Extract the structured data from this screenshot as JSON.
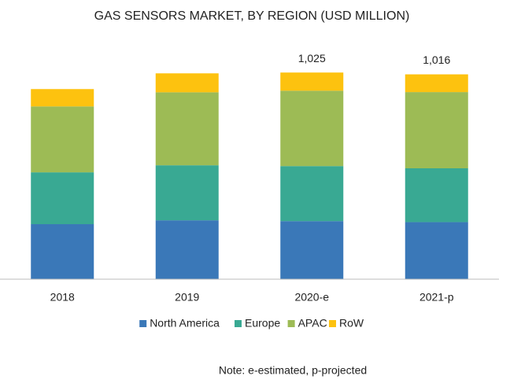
{
  "chart_data": {
    "type": "stacked_bar",
    "title": "GAS SENSORS MARKET, BY REGION (USD MILLION)",
    "categories": [
      "2018",
      "2019",
      "2020-e",
      "2021-p"
    ],
    "series": [
      {
        "name": "North America",
        "color": "#3a78b8",
        "values": [
          273,
          292,
          288,
          283
        ]
      },
      {
        "name": "Europe",
        "color": "#39a993",
        "values": [
          257,
          273,
          273,
          267
        ]
      },
      {
        "name": "APAC",
        "color": "#9dbb55",
        "values": [
          327,
          362,
          374,
          378
        ]
      },
      {
        "name": "RoW",
        "color": "#fdc20f",
        "values": [
          86,
          94,
          90,
          88
        ]
      }
    ],
    "totals": [
      null,
      null,
      1025,
      1016
    ],
    "total_labels": [
      null,
      null,
      "1,025",
      "1,016"
    ],
    "ylim": [
      0,
      1100
    ],
    "legend": "bottom",
    "note": "Note: e-estimated, p-projected"
  }
}
